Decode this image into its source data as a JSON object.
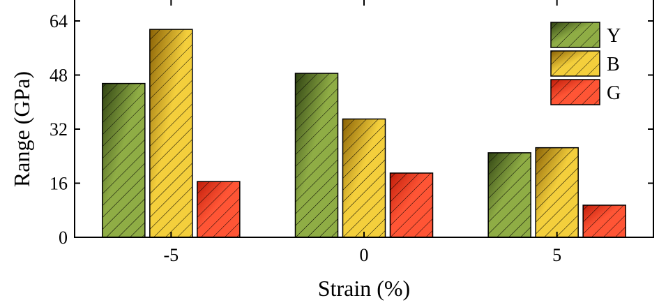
{
  "chart_data": {
    "type": "bar",
    "title": "",
    "xlabel": "Strain (%)",
    "ylabel": "Range (GPa)",
    "categories": [
      "-5",
      "0",
      "5"
    ],
    "series": [
      {
        "name": "Y",
        "values": [
          45.5,
          48.5,
          25.0
        ],
        "color_light": "#8fad45",
        "color_dark": "#2f4212"
      },
      {
        "name": "B",
        "values": [
          61.5,
          35.0,
          26.5
        ],
        "color_light": "#f4cf3c",
        "color_dark": "#8a6206"
      },
      {
        "name": "G",
        "values": [
          16.5,
          19.0,
          9.5
        ],
        "color_light": "#ff5535",
        "color_dark": "#c01d0a"
      }
    ],
    "ylim": [
      0,
      64
    ],
    "yticks": [
      0,
      16,
      32,
      48,
      64
    ],
    "grid": false,
    "legend_position": "top-right",
    "hatch": "diagonal"
  }
}
